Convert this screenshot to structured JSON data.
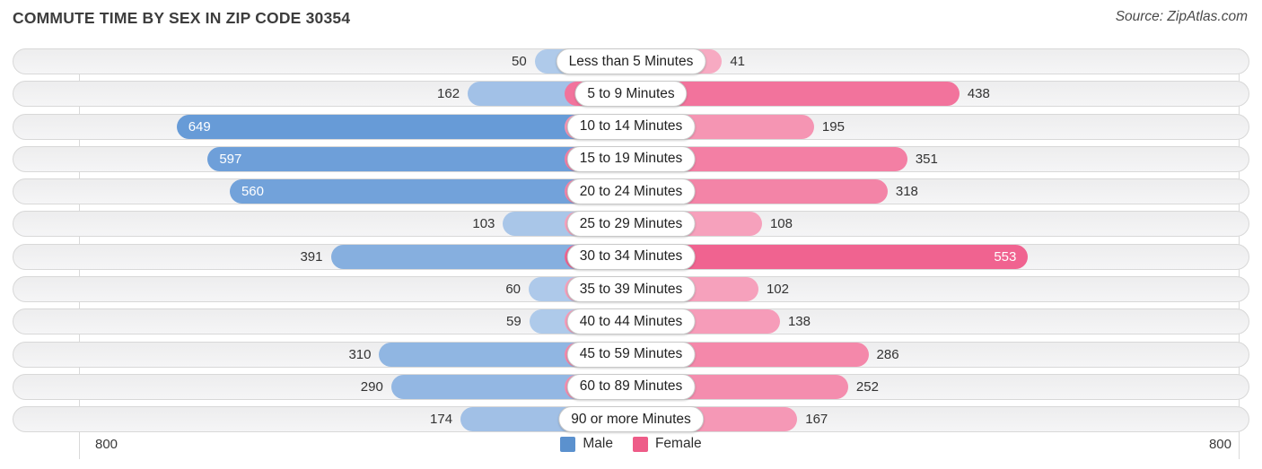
{
  "header": {
    "title": "COMMUTE TIME BY SEX IN ZIP CODE 30354",
    "source": "Source: ZipAtlas.com"
  },
  "axis": {
    "left_label": "800",
    "right_label": "800"
  },
  "legend": [
    {
      "label": "Male",
      "color": "#5b91ce"
    },
    {
      "label": "Female",
      "color": "#ee5c88"
    }
  ],
  "chart_data": {
    "type": "bar",
    "orientation": "diverging-horizontal",
    "title": "Commute Time by Sex in Zip Code 30354",
    "categories": [
      "Less than 5 Minutes",
      "5 to 9 Minutes",
      "10 to 14 Minutes",
      "15 to 19 Minutes",
      "20 to 24 Minutes",
      "25 to 29 Minutes",
      "30 to 34 Minutes",
      "35 to 39 Minutes",
      "40 to 44 Minutes",
      "45 to 59 Minutes",
      "60 to 89 Minutes",
      "90 or more Minutes"
    ],
    "series": [
      {
        "name": "Male",
        "side": "left",
        "base_color": "#508bd1",
        "values": [
          50,
          162,
          649,
          597,
          560,
          103,
          391,
          60,
          59,
          310,
          290,
          174
        ]
      },
      {
        "name": "Female",
        "side": "right",
        "base_color": "#ee4e81",
        "values": [
          41,
          438,
          195,
          351,
          318,
          108,
          553,
          102,
          138,
          286,
          252,
          167
        ]
      }
    ],
    "axis_max": 800,
    "xlim": [
      -800,
      800
    ],
    "grid": "max-lines-only",
    "legend_position": "bottom-center",
    "value_labels": "outside-unless-over-500-then-inside-white"
  }
}
